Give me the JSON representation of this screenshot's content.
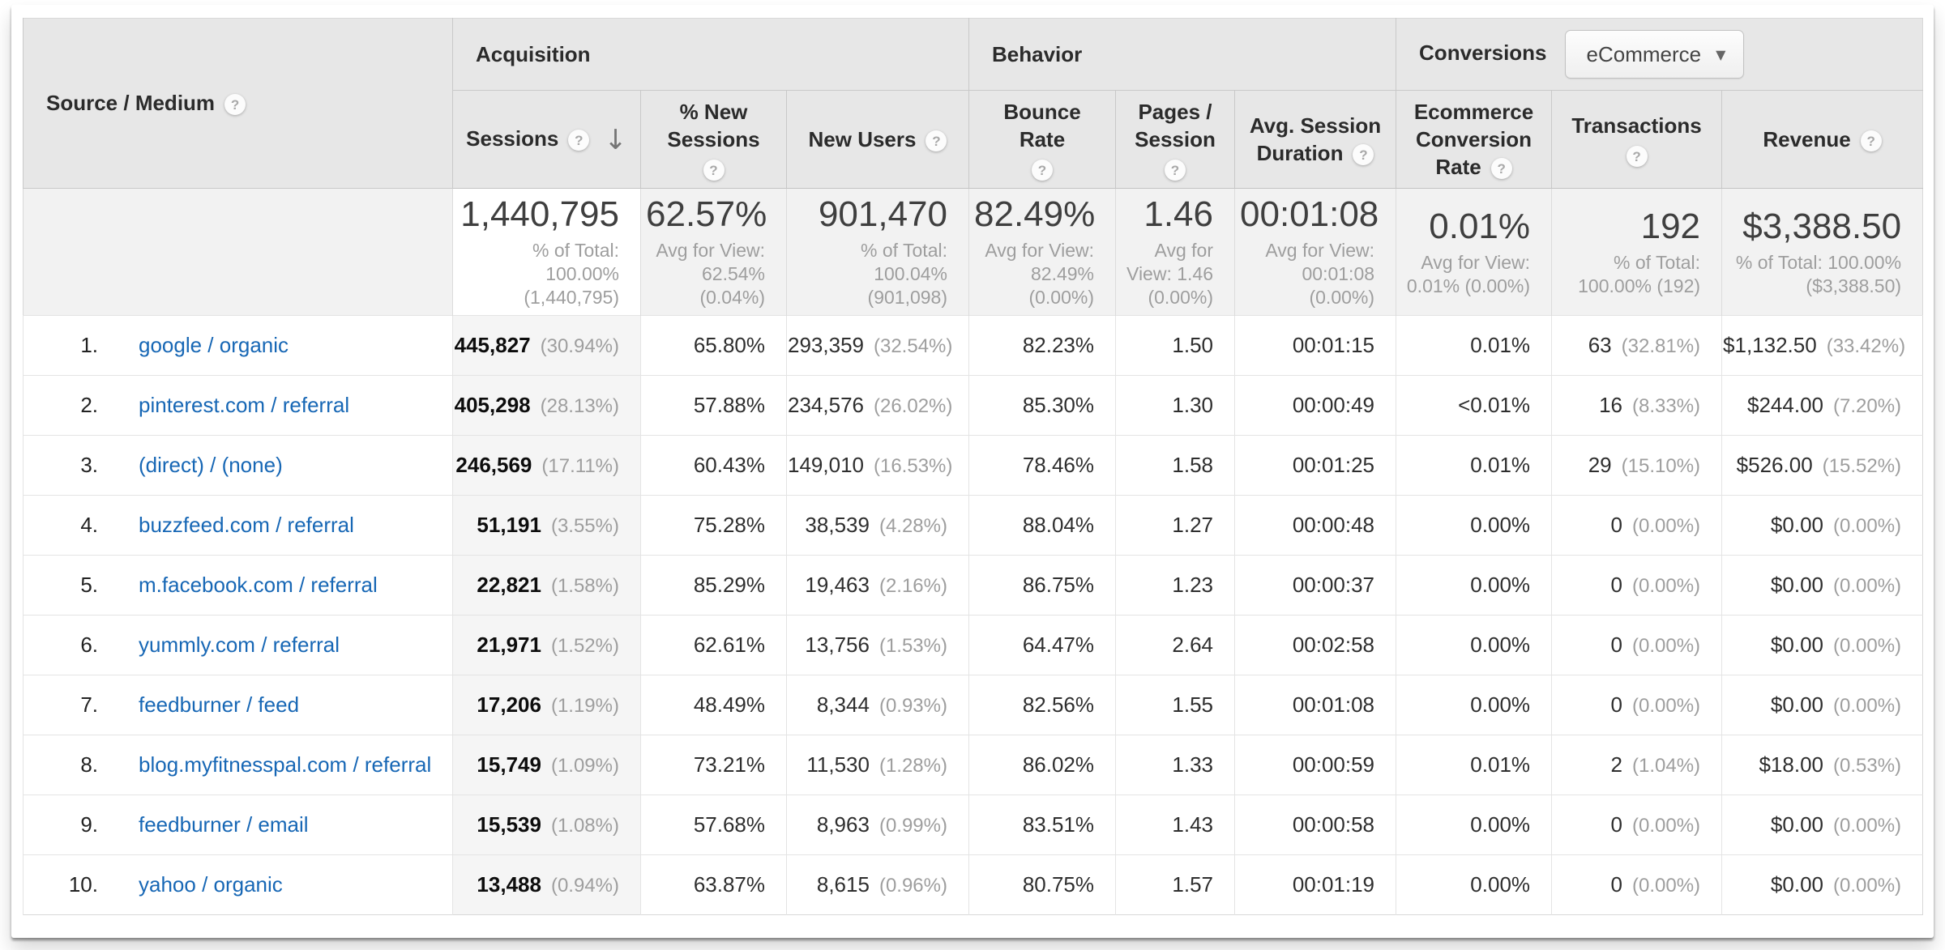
{
  "icons": {
    "help": "?",
    "sort_desc": "↓",
    "dropdown_arrow": "▼"
  },
  "colors": {
    "link_blue": "#1767b5",
    "header_bg": "#e7e7e7",
    "summary_bg": "#f2f2f2",
    "sorted_column_bg": "#f5f5f5",
    "muted_text": "#9e9e9e"
  },
  "table": {
    "row_header": "Source / Medium",
    "groups": [
      {
        "label": "Acquisition"
      },
      {
        "label": "Behavior"
      },
      {
        "label": "Conversions",
        "dropdown_value": "eCommerce"
      }
    ],
    "columns": [
      {
        "id": "sessions",
        "label": "Sessions",
        "sorted": true,
        "bold": true
      },
      {
        "id": "new_sessions_pct",
        "label": "% New Sessions"
      },
      {
        "id": "new_users",
        "label": "New Users"
      },
      {
        "id": "bounce_rate",
        "label": "Bounce Rate"
      },
      {
        "id": "pages_session",
        "label": "Pages / Session"
      },
      {
        "id": "avg_duration",
        "label": "Avg. Session Duration"
      },
      {
        "id": "ecom_rate",
        "label": "Ecommerce Conversion Rate"
      },
      {
        "id": "transactions",
        "label": "Transactions"
      },
      {
        "id": "revenue",
        "label": "Revenue"
      }
    ],
    "summary": {
      "sessions": {
        "primary": "1,440,795",
        "secondary": "% of Total: 100.00% (1,440,795)"
      },
      "new_sessions_pct": {
        "primary": "62.57%",
        "secondary": "Avg for View: 62.54% (0.04%)"
      },
      "new_users": {
        "primary": "901,470",
        "secondary": "% of Total: 100.04% (901,098)"
      },
      "bounce_rate": {
        "primary": "82.49%",
        "secondary": "Avg for View: 82.49% (0.00%)"
      },
      "pages_session": {
        "primary": "1.46",
        "secondary": "Avg for View: 1.46 (0.00%)"
      },
      "avg_duration": {
        "primary": "00:01:08",
        "secondary": "Avg for View: 00:01:08 (0.00%)"
      },
      "ecom_rate": {
        "primary": "0.01%",
        "secondary": "Avg for View: 0.01% (0.00%)"
      },
      "transactions": {
        "primary": "192",
        "secondary": "% of Total: 100.00% (192)"
      },
      "revenue": {
        "primary": "$3,388.50",
        "secondary": "% of Total: 100.00% ($3,388.50)"
      }
    },
    "rows": [
      {
        "rank": "1.",
        "source_medium": "google / organic",
        "sessions": {
          "value": "445,827",
          "pct": "(30.94%)"
        },
        "new_sessions_pct": "65.80%",
        "new_users": {
          "value": "293,359",
          "pct": "(32.54%)"
        },
        "bounce_rate": "82.23%",
        "pages_session": "1.50",
        "avg_duration": "00:01:15",
        "ecom_rate": "0.01%",
        "transactions": {
          "value": "63",
          "pct": "(32.81%)"
        },
        "revenue": {
          "value": "$1,132.50",
          "pct": "(33.42%)"
        }
      },
      {
        "rank": "2.",
        "source_medium": "pinterest.com / referral",
        "sessions": {
          "value": "405,298",
          "pct": "(28.13%)"
        },
        "new_sessions_pct": "57.88%",
        "new_users": {
          "value": "234,576",
          "pct": "(26.02%)"
        },
        "bounce_rate": "85.30%",
        "pages_session": "1.30",
        "avg_duration": "00:00:49",
        "ecom_rate": "<0.01%",
        "transactions": {
          "value": "16",
          "pct": "(8.33%)"
        },
        "revenue": {
          "value": "$244.00",
          "pct": "(7.20%)"
        }
      },
      {
        "rank": "3.",
        "source_medium": "(direct) / (none)",
        "sessions": {
          "value": "246,569",
          "pct": "(17.11%)"
        },
        "new_sessions_pct": "60.43%",
        "new_users": {
          "value": "149,010",
          "pct": "(16.53%)"
        },
        "bounce_rate": "78.46%",
        "pages_session": "1.58",
        "avg_duration": "00:01:25",
        "ecom_rate": "0.01%",
        "transactions": {
          "value": "29",
          "pct": "(15.10%)"
        },
        "revenue": {
          "value": "$526.00",
          "pct": "(15.52%)"
        }
      },
      {
        "rank": "4.",
        "source_medium": "buzzfeed.com / referral",
        "sessions": {
          "value": "51,191",
          "pct": "(3.55%)"
        },
        "new_sessions_pct": "75.28%",
        "new_users": {
          "value": "38,539",
          "pct": "(4.28%)"
        },
        "bounce_rate": "88.04%",
        "pages_session": "1.27",
        "avg_duration": "00:00:48",
        "ecom_rate": "0.00%",
        "transactions": {
          "value": "0",
          "pct": "(0.00%)"
        },
        "revenue": {
          "value": "$0.00",
          "pct": "(0.00%)"
        }
      },
      {
        "rank": "5.",
        "source_medium": "m.facebook.com / referral",
        "sessions": {
          "value": "22,821",
          "pct": "(1.58%)"
        },
        "new_sessions_pct": "85.29%",
        "new_users": {
          "value": "19,463",
          "pct": "(2.16%)"
        },
        "bounce_rate": "86.75%",
        "pages_session": "1.23",
        "avg_duration": "00:00:37",
        "ecom_rate": "0.00%",
        "transactions": {
          "value": "0",
          "pct": "(0.00%)"
        },
        "revenue": {
          "value": "$0.00",
          "pct": "(0.00%)"
        }
      },
      {
        "rank": "6.",
        "source_medium": "yummly.com / referral",
        "sessions": {
          "value": "21,971",
          "pct": "(1.52%)"
        },
        "new_sessions_pct": "62.61%",
        "new_users": {
          "value": "13,756",
          "pct": "(1.53%)"
        },
        "bounce_rate": "64.47%",
        "pages_session": "2.64",
        "avg_duration": "00:02:58",
        "ecom_rate": "0.00%",
        "transactions": {
          "value": "0",
          "pct": "(0.00%)"
        },
        "revenue": {
          "value": "$0.00",
          "pct": "(0.00%)"
        }
      },
      {
        "rank": "7.",
        "source_medium": "feedburner / feed",
        "sessions": {
          "value": "17,206",
          "pct": "(1.19%)"
        },
        "new_sessions_pct": "48.49%",
        "new_users": {
          "value": "8,344",
          "pct": "(0.93%)"
        },
        "bounce_rate": "82.56%",
        "pages_session": "1.55",
        "avg_duration": "00:01:08",
        "ecom_rate": "0.00%",
        "transactions": {
          "value": "0",
          "pct": "(0.00%)"
        },
        "revenue": {
          "value": "$0.00",
          "pct": "(0.00%)"
        }
      },
      {
        "rank": "8.",
        "source_medium": "blog.myfitnesspal.com / referral",
        "sessions": {
          "value": "15,749",
          "pct": "(1.09%)"
        },
        "new_sessions_pct": "73.21%",
        "new_users": {
          "value": "11,530",
          "pct": "(1.28%)"
        },
        "bounce_rate": "86.02%",
        "pages_session": "1.33",
        "avg_duration": "00:00:59",
        "ecom_rate": "0.01%",
        "transactions": {
          "value": "2",
          "pct": "(1.04%)"
        },
        "revenue": {
          "value": "$18.00",
          "pct": "(0.53%)"
        }
      },
      {
        "rank": "9.",
        "source_medium": "feedburner / email",
        "sessions": {
          "value": "15,539",
          "pct": "(1.08%)"
        },
        "new_sessions_pct": "57.68%",
        "new_users": {
          "value": "8,963",
          "pct": "(0.99%)"
        },
        "bounce_rate": "83.51%",
        "pages_session": "1.43",
        "avg_duration": "00:00:58",
        "ecom_rate": "0.00%",
        "transactions": {
          "value": "0",
          "pct": "(0.00%)"
        },
        "revenue": {
          "value": "$0.00",
          "pct": "(0.00%)"
        }
      },
      {
        "rank": "10.",
        "source_medium": "yahoo / organic",
        "sessions": {
          "value": "13,488",
          "pct": "(0.94%)"
        },
        "new_sessions_pct": "63.87%",
        "new_users": {
          "value": "8,615",
          "pct": "(0.96%)"
        },
        "bounce_rate": "80.75%",
        "pages_session": "1.57",
        "avg_duration": "00:01:19",
        "ecom_rate": "0.00%",
        "transactions": {
          "value": "0",
          "pct": "(0.00%)"
        },
        "revenue": {
          "value": "$0.00",
          "pct": "(0.00%)"
        }
      }
    ]
  }
}
